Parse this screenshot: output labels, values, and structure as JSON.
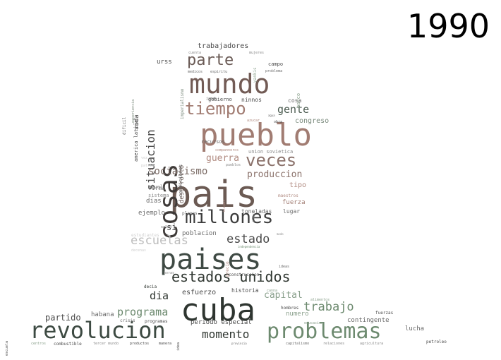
{
  "year": "1990",
  "words": [
    {
      "text": "pais",
      "size": 52,
      "color": "#6b5a53"
    },
    {
      "text": "cuba",
      "size": 44,
      "color": "#2e3530"
    },
    {
      "text": "paises",
      "size": 40,
      "color": "#3f4a44"
    },
    {
      "text": "pueblo",
      "size": 44,
      "color": "#a17c72"
    },
    {
      "text": "mundo",
      "size": 38,
      "color": "#725b55"
    },
    {
      "text": "cosas",
      "size": 36,
      "color": "#3e3a38",
      "rot": true
    },
    {
      "text": "revolucion",
      "size": 32,
      "color": "#3d4a42"
    },
    {
      "text": "problemas",
      "size": 30,
      "color": "#6d8a6f"
    },
    {
      "text": "millones",
      "size": 26,
      "color": "#3d3d3d"
    },
    {
      "text": "veces",
      "size": 24,
      "color": "#8b726b"
    },
    {
      "text": "tiempo",
      "size": 24,
      "color": "#a17c72"
    },
    {
      "text": "parte",
      "size": 22,
      "color": "#6a5a55"
    },
    {
      "text": "estados unidos",
      "size": 20,
      "color": "#2f3630"
    },
    {
      "text": "situacion",
      "size": 16,
      "color": "#4a4a4a",
      "rot": true
    },
    {
      "text": "escuelas",
      "size": 17,
      "color": "#bdbdbd"
    },
    {
      "text": "estado",
      "size": 17,
      "color": "#4a4a4a"
    },
    {
      "text": "trabajo",
      "size": 17,
      "color": "#6d8a6f"
    },
    {
      "text": "momento",
      "size": 16,
      "color": "#2f3630"
    },
    {
      "text": "programa",
      "size": 15,
      "color": "#6d8a6f"
    },
    {
      "text": "gente",
      "size": 15,
      "color": "#4a5a4f"
    },
    {
      "text": "socialismo",
      "size": 14,
      "color": "#7a6a64"
    },
    {
      "text": "produccion",
      "size": 13,
      "color": "#8b726b"
    },
    {
      "text": "guerra",
      "size": 13,
      "color": "#b08a80"
    },
    {
      "text": "dia",
      "size": 15,
      "color": "#2f3630"
    },
    {
      "text": "capital",
      "size": 13,
      "color": "#8aa08c"
    },
    {
      "text": "partido",
      "size": 12,
      "color": "#4a4a4a"
    },
    {
      "text": "si",
      "size": 12,
      "color": "#4a4a4a"
    },
    {
      "text": "trabajadores",
      "size": 10,
      "color": "#4a4a4a"
    },
    {
      "text": "congreso",
      "size": 10,
      "color": "#7a8a7c"
    },
    {
      "text": "desarrollo",
      "size": 9,
      "color": "#6a5a55",
      "rot": true
    },
    {
      "text": "condiciones",
      "size": 7,
      "color": "#6a6a6a",
      "rot": true
    },
    {
      "text": "esfuerzo",
      "size": 10,
      "color": "#4a4a4a"
    },
    {
      "text": "poblacion",
      "size": 9,
      "color": "#6a6a6a"
    },
    {
      "text": "contingente",
      "size": 9,
      "color": "#6a6a6a"
    },
    {
      "text": "fuerza",
      "size": 9,
      "color": "#a17c72"
    },
    {
      "text": "tipo",
      "size": 10,
      "color": "#b08a80"
    },
    {
      "text": "lucha",
      "size": 9,
      "color": "#6a6a6a"
    },
    {
      "text": "numero",
      "size": 9,
      "color": "#8aa08c"
    },
    {
      "text": "periodo especial",
      "size": 9,
      "color": "#4a4a4a"
    },
    {
      "text": "historia",
      "size": 8,
      "color": "#4a4a4a"
    },
    {
      "text": "habana",
      "size": 9,
      "color": "#6a6a6a"
    },
    {
      "text": "dias",
      "size": 9,
      "color": "#6a6a6a"
    },
    {
      "text": "ejemplo",
      "size": 9,
      "color": "#6a6a6a"
    },
    {
      "text": "toneladas",
      "size": 8,
      "color": "#6a6a6a"
    },
    {
      "text": "lugar",
      "size": 8,
      "color": "#6a6a6a"
    },
    {
      "text": "forma",
      "size": 8,
      "color": "#6a6a6a"
    },
    {
      "text": "sistema",
      "size": 7,
      "color": "#8a8a8a"
    },
    {
      "text": "nivel",
      "size": 7,
      "color": "#8a8a8a"
    },
    {
      "text": "urss",
      "size": 9,
      "color": "#4a4a4a"
    },
    {
      "text": "vida",
      "size": 9,
      "color": "#4a4a4a",
      "rot": true
    },
    {
      "text": "america latina",
      "size": 7,
      "color": "#4a4a4a",
      "rot": true
    },
    {
      "text": "dificil",
      "size": 6,
      "color": "#6a6a6a",
      "rot": true
    },
    {
      "text": "experiencia",
      "size": 5,
      "color": "#7a8a7c",
      "rot": true
    },
    {
      "text": "imperialismo",
      "size": 6,
      "color": "#7a8a7c",
      "rot": true
    },
    {
      "text": "recursos",
      "size": 7,
      "color": "#6a6a6a"
    },
    {
      "text": "gobierno",
      "size": 7,
      "color": "#4a4a4a"
    },
    {
      "text": "ninnos",
      "size": 8,
      "color": "#4a4a4a"
    },
    {
      "text": "cosa",
      "size": 8,
      "color": "#6a6a6a"
    },
    {
      "text": "barco",
      "size": 7,
      "color": "#8aa08c",
      "rot": true
    },
    {
      "text": "campo",
      "size": 7,
      "color": "#4a4a4a"
    },
    {
      "text": "medicos",
      "size": 5,
      "color": "#6a6a6a"
    },
    {
      "text": "espiritu",
      "size": 5,
      "color": "#6a6a6a"
    },
    {
      "text": "cuenta",
      "size": 5,
      "color": "#8a8a8a"
    },
    {
      "text": "mujeres",
      "size": 5,
      "color": "#8a8a8a"
    },
    {
      "text": "yankis",
      "size": 6,
      "color": "#8aa08c",
      "rot": true
    },
    {
      "text": "problema",
      "size": 5,
      "color": "#6a6a6a"
    },
    {
      "text": "jamas",
      "size": 5,
      "color": "#6a6a6a"
    },
    {
      "text": "agua",
      "size": 4,
      "color": "#6a6a6a"
    },
    {
      "text": "azucar",
      "size": 5,
      "color": "#b08a80"
    },
    {
      "text": "obra",
      "size": 5,
      "color": "#4a4a4a"
    },
    {
      "text": "union sovietica",
      "size": 7,
      "color": "#8a8a8a"
    },
    {
      "text": "companneros",
      "size": 5,
      "color": "#b08a80"
    },
    {
      "text": "pueblos",
      "size": 5,
      "color": "#8a8a8a"
    },
    {
      "text": "maestros",
      "size": 6,
      "color": "#b08a80"
    },
    {
      "text": "hombre",
      "size": 4,
      "color": "#8a8a8a",
      "rot": true
    },
    {
      "text": "bloqueo",
      "size": 4,
      "color": "#b08a80",
      "rot": true
    },
    {
      "text": "planes",
      "size": 6,
      "color": "#6a6a6a"
    },
    {
      "text": "salud",
      "size": 5,
      "color": "#6a6a6a"
    },
    {
      "text": "estudiantes",
      "size": 6,
      "color": "#cfcfcf"
    },
    {
      "text": "decenas",
      "size": 5,
      "color": "#cfcfcf"
    },
    {
      "text": "patria",
      "size": 5,
      "color": "#cfcfcf"
    },
    {
      "text": "vez",
      "size": 5,
      "color": "#cfcfcf"
    },
    {
      "text": "modo",
      "size": 4,
      "color": "#8a8a8a"
    },
    {
      "text": "independencia",
      "size": 4,
      "color": "#6a8a6c"
    },
    {
      "text": "precio",
      "size": 6,
      "color": "#b08a80",
      "rot": true
    },
    {
      "text": "horas",
      "size": 5,
      "color": "#8a8a8a"
    },
    {
      "text": "construccion",
      "size": 6,
      "color": "#4a4a4a"
    },
    {
      "text": "ideas",
      "size": 5,
      "color": "#6a6a6a"
    },
    {
      "text": "decia",
      "size": 6,
      "color": "#2f3630"
    },
    {
      "text": "canna",
      "size": 5,
      "color": "#8aa08c"
    },
    {
      "text": "alimentos",
      "size": 5,
      "color": "#8aa08c"
    },
    {
      "text": "hombres",
      "size": 6,
      "color": "#4a4a4a"
    },
    {
      "text": "educacion",
      "size": 5,
      "color": "#8aa08c"
    },
    {
      "text": "fuerzas",
      "size": 6,
      "color": "#4a4a4a"
    },
    {
      "text": "crisis",
      "size": 6,
      "color": "#6a6a6a"
    },
    {
      "text": "programas",
      "size": 6,
      "color": "#4a4a4a"
    },
    {
      "text": "idea",
      "size": 5,
      "color": "#4a4a4a",
      "rot": true
    },
    {
      "text": "escuela",
      "size": 5,
      "color": "#4a4a4a",
      "rot": true
    },
    {
      "text": "centros",
      "size": 5,
      "color": "#8aa08c"
    },
    {
      "text": "combustible",
      "size": 6,
      "color": "#4a4a4a"
    },
    {
      "text": "tercer mundo",
      "size": 5,
      "color": "#8a8a8a"
    },
    {
      "text": "productos",
      "size": 5,
      "color": "#4a4a4a"
    },
    {
      "text": "manera",
      "size": 5,
      "color": "#4a4a4a"
    },
    {
      "text": "provincia",
      "size": 4,
      "color": "#6a6a6a"
    },
    {
      "text": "capitalismo",
      "size": 5,
      "color": "#6a6a6a"
    },
    {
      "text": "relaciones",
      "size": 5,
      "color": "#8a8a8a"
    },
    {
      "text": "agricultura",
      "size": 5,
      "color": "#8a8a8a"
    },
    {
      "text": "petroleo",
      "size": 6,
      "color": "#4a4a4a"
    }
  ]
}
